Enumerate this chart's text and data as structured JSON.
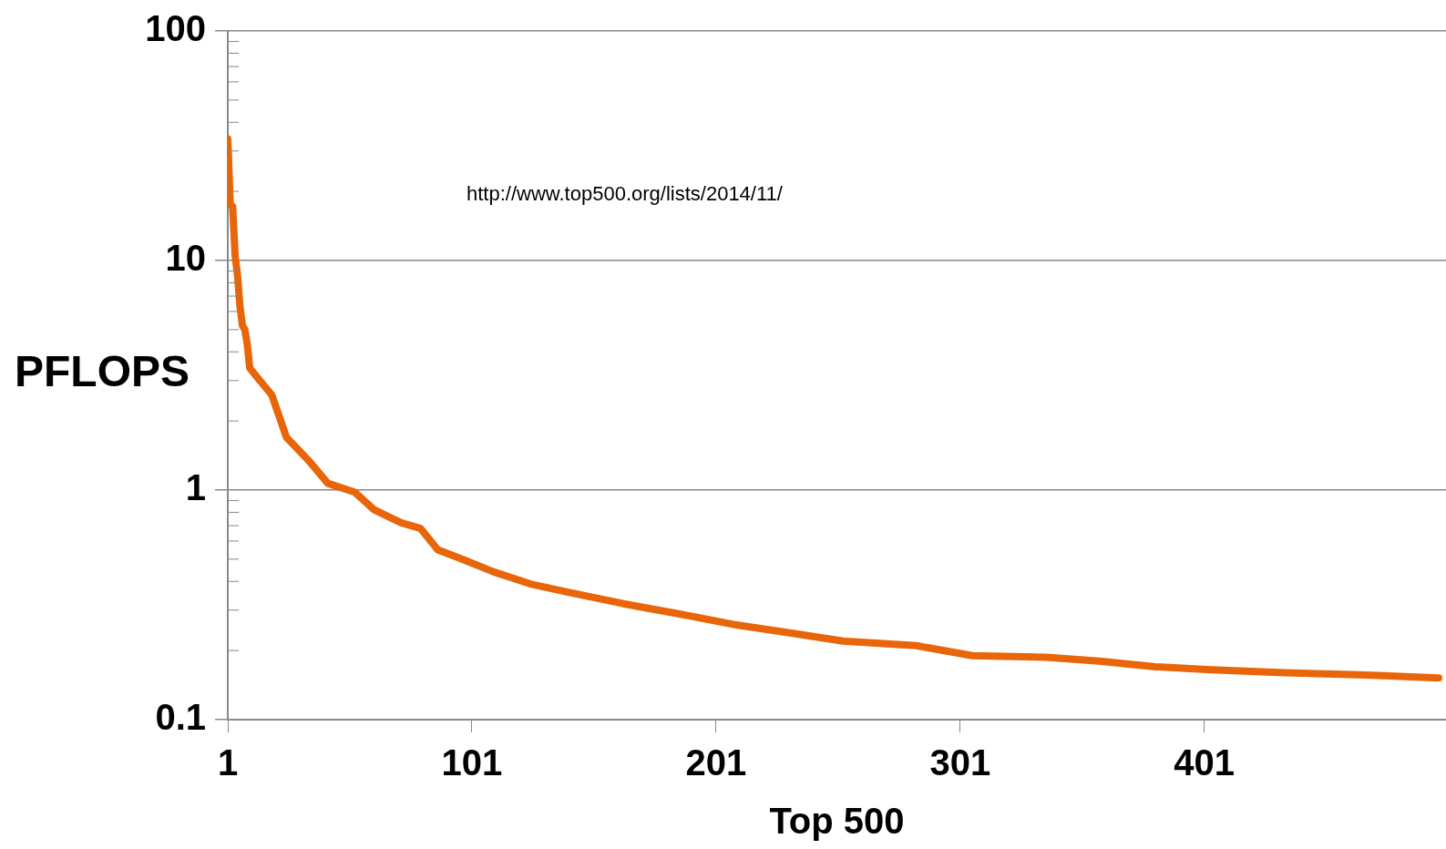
{
  "chart_data": {
    "type": "line",
    "xlabel": "Top 500",
    "ylabel": "PFLOPS",
    "annotations": [
      "http://www.top500.org/lists/2014/11/"
    ],
    "log": "y",
    "grid": "y",
    "legend": false,
    "marker": "none",
    "line_style": "solid",
    "xlim": [
      1,
      500
    ],
    "xticks": [
      1,
      101,
      201,
      301,
      401
    ],
    "ylim": [
      0.1,
      100
    ],
    "yticks": [
      0.1,
      1,
      10,
      100
    ],
    "x": [
      1,
      2,
      3,
      4,
      5,
      6,
      7,
      8,
      9,
      10,
      12,
      19,
      25,
      34,
      42,
      53,
      61,
      72,
      80,
      87,
      95,
      110,
      125,
      140,
      163,
      185,
      208,
      230,
      253,
      283,
      306,
      336,
      358,
      381,
      404,
      434,
      464,
      497
    ],
    "series": [
      {
        "color": "#e8650a",
        "values": [
          33.9,
          17.6,
          17.2,
          10.5,
          8.6,
          6.3,
          5.2,
          5.0,
          4.3,
          3.4,
          3.2,
          2.6,
          1.7,
          1.35,
          1.07,
          0.98,
          0.82,
          0.72,
          0.68,
          0.55,
          0.51,
          0.44,
          0.39,
          0.36,
          0.32,
          0.29,
          0.26,
          0.24,
          0.22,
          0.21,
          0.19,
          0.187,
          0.18,
          0.17,
          0.165,
          0.16,
          0.157,
          0.152
        ]
      }
    ]
  }
}
